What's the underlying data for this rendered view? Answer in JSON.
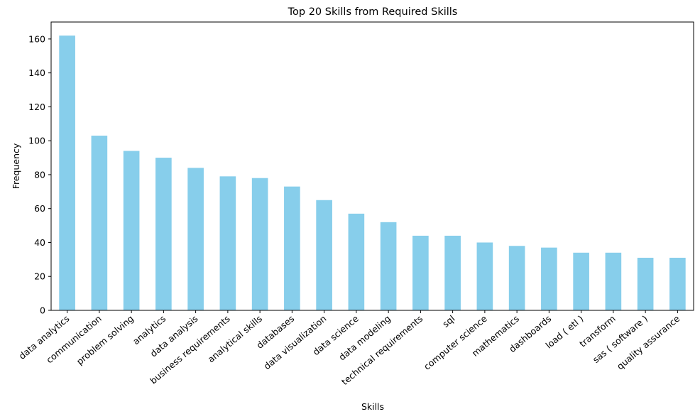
{
  "chart_data": {
    "type": "bar",
    "title": "Top 20 Skills from Required Skills",
    "xlabel": "Skills",
    "ylabel": "Frequency",
    "categories": [
      "data analytics",
      "communication",
      "problem solving",
      "analytics",
      "data analysis",
      "business requirements",
      "analytical skills",
      "databases",
      "data visualization",
      "data science",
      "data modeling",
      "technical requirements",
      "sql",
      "computer science",
      "mathematics",
      "dashboards",
      "load ( etl )",
      "transform",
      "sas ( software )",
      "quality assurance"
    ],
    "values": [
      162,
      103,
      94,
      90,
      84,
      79,
      78,
      73,
      65,
      57,
      52,
      44,
      44,
      40,
      38,
      37,
      34,
      34,
      31,
      31
    ],
    "ylim": [
      0,
      170
    ],
    "yticks": [
      0,
      20,
      40,
      60,
      80,
      100,
      120,
      140,
      160
    ],
    "bar_color": "#87ceeb",
    "grid": false,
    "legend": "none"
  }
}
